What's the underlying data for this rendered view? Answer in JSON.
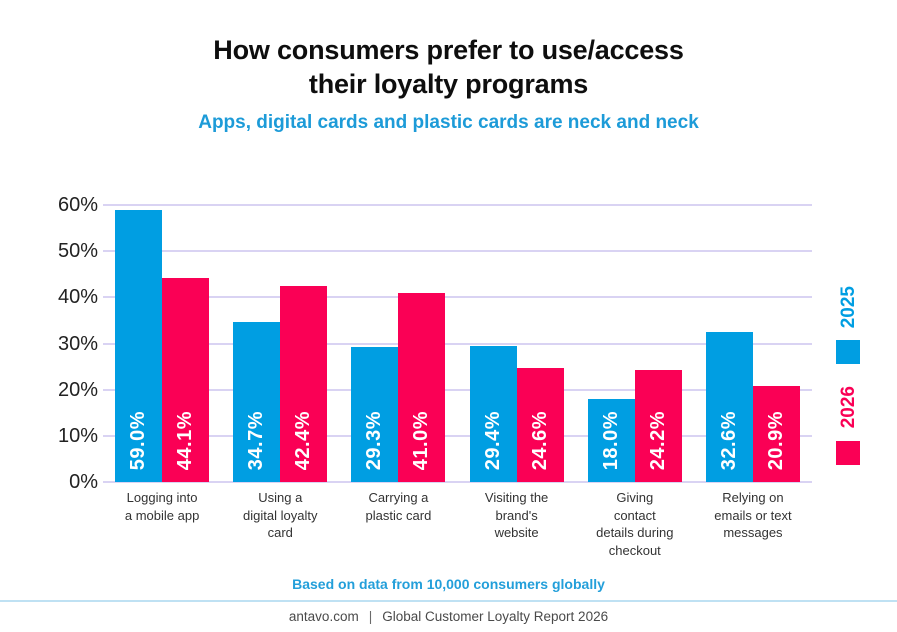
{
  "header": {
    "title_lines": [
      "How consumers prefer to use/access",
      "their loyalty programs"
    ],
    "subtitle": "Apps, digital cards and plastic cards are neck and neck"
  },
  "chart_data": {
    "type": "bar",
    "title": "How consumers prefer to use/access their loyalty programs",
    "subtitle": "Apps, digital cards and plastic cards are neck and neck",
    "categories": [
      "Logging into\na mobile app",
      "Using a\ndigital loyalty\ncard",
      "Carrying a\nplastic card",
      "Visiting the\nbrand's\nwebsite",
      "Giving\ncontact\ndetails during\ncheckout",
      "Relying on\nemails or text\nmessages"
    ],
    "series": [
      {
        "name": "2025",
        "color": "#009ee2",
        "values": [
          59.0,
          34.7,
          29.3,
          29.4,
          18.0,
          32.6
        ],
        "labels": [
          "59.0%",
          "34.7%",
          "29.3%",
          "29.4%",
          "18.0%",
          "32.6%"
        ]
      },
      {
        "name": "2026",
        "color": "#fa0055",
        "values": [
          44.1,
          42.4,
          41.0,
          24.6,
          24.2,
          20.9
        ],
        "labels": [
          "44.1%",
          "42.4%",
          "41.0%",
          "24.6%",
          "24.2%",
          "20.9%"
        ]
      }
    ],
    "xlabel": "",
    "ylabel": "",
    "ylim": [
      0,
      60
    ],
    "y_ticks": [
      "0%",
      "10%",
      "20%",
      "30%",
      "40%",
      "50%",
      "60%"
    ],
    "grid": true,
    "gridline_color": "#d9d3f3",
    "legend_position": "right",
    "value_label_color": "#ffffff"
  },
  "footnote": "Based on data from 10,000 consumers globally",
  "footer": {
    "site": "antavo.com",
    "separator": "|",
    "report": "Global Customer Loyalty Report 2026"
  }
}
